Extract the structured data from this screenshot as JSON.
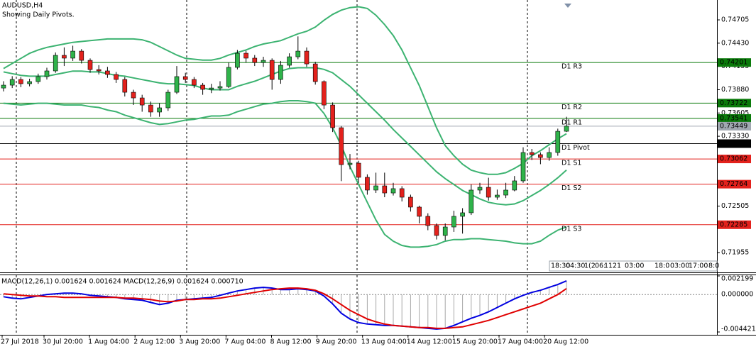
{
  "chart_data": [
    {
      "type": "candlestick",
      "title": "AUDUSD,H4",
      "subtitle": "Showing Daily Pivots.",
      "up_color": "#2fb34a",
      "down_color": "#e3211c",
      "wick_color": "#000000",
      "open": [
        0.739,
        0.73934,
        0.74001,
        0.73951,
        0.73976,
        0.74035,
        0.74102,
        0.74286,
        0.74253,
        0.74336,
        0.74227,
        0.74118,
        0.74102,
        0.7406,
        0.74001,
        0.7385,
        0.73783,
        0.73699,
        0.73616,
        0.73666,
        0.7385,
        0.74035,
        0.74001,
        0.73934,
        0.73884,
        0.739,
        0.73917,
        0.74144,
        0.74311,
        0.74253,
        0.74202,
        0.74227,
        0.74001,
        0.74169,
        0.74269,
        0.74336,
        0.74185,
        0.73976,
        0.73699,
        0.73431,
        0.72995,
        0.73012,
        0.72845,
        0.72694,
        0.72744,
        0.7266,
        0.72711,
        0.7261,
        0.72493,
        0.72384,
        0.72275,
        0.72158,
        0.72258,
        0.72384,
        0.72426,
        0.72694,
        0.72727,
        0.7261,
        0.72635,
        0.72694,
        0.72803,
        0.73138,
        0.73113,
        0.73079,
        0.73138,
        0.73389
      ],
      "high": [
        0.7398,
        0.7404,
        0.7403,
        0.7401,
        0.7407,
        0.7414,
        0.7432,
        0.7438,
        0.744,
        0.7436,
        0.7425,
        0.7417,
        0.7415,
        0.7409,
        0.7403,
        0.7388,
        0.7382,
        0.7374,
        0.7372,
        0.7388,
        0.7416,
        0.7408,
        0.7403,
        0.7396,
        0.7395,
        0.7398,
        0.742,
        0.7435,
        0.7434,
        0.7429,
        0.7427,
        0.7425,
        0.7422,
        0.7431,
        0.7451,
        0.7438,
        0.7421,
        0.7399,
        0.7373,
        0.7345,
        0.7312,
        0.7304,
        0.7288,
        0.729,
        0.729,
        0.7278,
        0.7274,
        0.7264,
        0.7251,
        0.7242,
        0.723,
        0.723,
        0.7245,
        0.7248,
        0.7276,
        0.7278,
        0.7284,
        0.727,
        0.7278,
        0.7286,
        0.732,
        0.7318,
        0.7314,
        0.732,
        0.7342,
        0.7356
      ],
      "low": [
        0.7386,
        0.739,
        0.7391,
        0.7392,
        0.7395,
        0.74,
        0.7408,
        0.7416,
        0.7422,
        0.7419,
        0.7408,
        0.7406,
        0.7402,
        0.7396,
        0.738,
        0.737,
        0.7362,
        0.7356,
        0.7356,
        0.7363,
        0.7383,
        0.7396,
        0.739,
        0.7382,
        0.7384,
        0.7387,
        0.739,
        0.7412,
        0.742,
        0.7416,
        0.7415,
        0.7388,
        0.7395,
        0.7414,
        0.7424,
        0.7415,
        0.7394,
        0.7365,
        0.7338,
        0.728,
        0.7294,
        0.7278,
        0.7264,
        0.7266,
        0.7261,
        0.7263,
        0.7256,
        0.7244,
        0.723,
        0.7222,
        0.7211,
        0.721,
        0.722,
        0.7218,
        0.724,
        0.7265,
        0.7257,
        0.7258,
        0.726,
        0.7268,
        0.7278,
        0.7305,
        0.73,
        0.7304,
        0.731,
        0.7338
      ],
      "close": [
        0.73934,
        0.74001,
        0.73951,
        0.73976,
        0.74035,
        0.74102,
        0.74286,
        0.74253,
        0.74336,
        0.74227,
        0.74118,
        0.74102,
        0.7406,
        0.74001,
        0.7385,
        0.73783,
        0.73699,
        0.73616,
        0.73666,
        0.7385,
        0.74035,
        0.74001,
        0.73934,
        0.73884,
        0.739,
        0.73917,
        0.74144,
        0.74311,
        0.74253,
        0.74202,
        0.74227,
        0.74001,
        0.74169,
        0.74269,
        0.74336,
        0.74185,
        0.73976,
        0.73699,
        0.73431,
        0.72995,
        0.73012,
        0.72845,
        0.72694,
        0.72744,
        0.7266,
        0.72711,
        0.7261,
        0.72493,
        0.72384,
        0.72275,
        0.72158,
        0.72258,
        0.72384,
        0.72426,
        0.72694,
        0.72727,
        0.7261,
        0.72635,
        0.72694,
        0.72803,
        0.73138,
        0.73113,
        0.73079,
        0.73138,
        0.73389,
        0.73449
      ],
      "bands": [
        {
          "color": "#3cb371",
          "values": [
            0.7413,
            0.7419,
            0.7425,
            0.7431,
            0.7435,
            0.7438,
            0.744,
            0.7442,
            0.7444,
            0.7445,
            0.7446,
            0.7447,
            0.7448,
            0.7448,
            0.7448,
            0.7448,
            0.7447,
            0.7444,
            0.7439,
            0.7434,
            0.7429,
            0.7425,
            0.7424,
            0.7423,
            0.7423,
            0.7425,
            0.7429,
            0.7432,
            0.7435,
            0.7439,
            0.7442,
            0.7444,
            0.7446,
            0.745,
            0.7454,
            0.7457,
            0.7462,
            0.747,
            0.7477,
            0.7482,
            0.7485,
            0.7486,
            0.7484,
            0.7476,
            0.7465,
            0.7452,
            0.7435,
            0.7414,
            0.7393,
            0.7368,
            0.7343,
            0.7322,
            0.731,
            0.73,
            0.7293,
            0.729,
            0.7288,
            0.7288,
            0.729,
            0.7295,
            0.7301,
            0.731,
            0.7316,
            0.7323,
            0.733,
            0.7336
          ]
        },
        {
          "color": "#3cb371",
          "values": [
            0.7409,
            0.7407,
            0.7405,
            0.7404,
            0.7404,
            0.7404,
            0.7406,
            0.7408,
            0.741,
            0.741,
            0.7409,
            0.7409,
            0.7407,
            0.7405,
            0.7404,
            0.7402,
            0.74,
            0.7398,
            0.7396,
            0.7395,
            0.7395,
            0.7394,
            0.7393,
            0.739,
            0.7388,
            0.7388,
            0.7388,
            0.7392,
            0.7395,
            0.7398,
            0.7402,
            0.7406,
            0.741,
            0.7413,
            0.7414,
            0.7414,
            0.7414,
            0.7412,
            0.7408,
            0.74,
            0.7392,
            0.7382,
            0.7372,
            0.7362,
            0.7352,
            0.7341,
            0.7331,
            0.7321,
            0.7311,
            0.7301,
            0.7291,
            0.7283,
            0.7276,
            0.7269,
            0.7264,
            0.7259,
            0.7255,
            0.7253,
            0.7252,
            0.7253,
            0.7257,
            0.7263,
            0.7269,
            0.7276,
            0.7284,
            0.7293
          ]
        },
        {
          "color": "#3cb371",
          "values": [
            0.7372,
            0.7371,
            0.737,
            0.7371,
            0.7372,
            0.7372,
            0.7371,
            0.737,
            0.737,
            0.737,
            0.7368,
            0.7367,
            0.7364,
            0.7362,
            0.7358,
            0.7355,
            0.7352,
            0.7349,
            0.7347,
            0.7348,
            0.735,
            0.7352,
            0.7353,
            0.7355,
            0.7357,
            0.7357,
            0.7358,
            0.7362,
            0.7365,
            0.7368,
            0.7371,
            0.7372,
            0.7374,
            0.7375,
            0.7375,
            0.7374,
            0.7372,
            0.736,
            0.7343,
            0.7322,
            0.7297,
            0.7276,
            0.7255,
            0.7234,
            0.7217,
            0.7209,
            0.7204,
            0.7202,
            0.7202,
            0.7203,
            0.7205,
            0.7209,
            0.7211,
            0.7211,
            0.7212,
            0.7212,
            0.7211,
            0.721,
            0.7209,
            0.7207,
            0.7206,
            0.7206,
            0.7209,
            0.7216,
            0.7222,
            0.7226
          ]
        }
      ],
      "levels": [
        {
          "label": "D1 R3",
          "value": 0.74201,
          "color": "#0a7a0a"
        },
        {
          "label": "D1 R2",
          "value": 0.73722,
          "color": "#0a7a0a"
        },
        {
          "label": "D1 R1",
          "value": 0.73541,
          "color": "#0a7a0a"
        },
        {
          "label": "D1 Pivot",
          "value": 0.73243,
          "color": "#000000"
        },
        {
          "label": "D1 S1",
          "value": 0.73062,
          "color": "#e3211c"
        },
        {
          "label": "D1 S2",
          "value": 0.72764,
          "color": "#e3211c"
        },
        {
          "label": "D1 S3",
          "value": 0.72285,
          "color": "#e3211c"
        }
      ],
      "bid": {
        "value": 0.73449,
        "color": "#a0a8b0"
      },
      "ylim": [
        0.7173,
        0.7494
      ],
      "yticks": [
        0.74705,
        {
          "value": 0.7443,
          "label": "0.74430"
        },
        0.74155,
        {
          "value": 0.7388,
          "label": "0.73880"
        },
        0.73605,
        {
          "value": 0.7333,
          "label": "0.73330"
        },
        0.72505,
        0.71955
      ],
      "time_labels": [
        "18:30",
        "04:30",
        "1(2",
        "06:",
        "1",
        "1",
        "21",
        "03:00",
        "18:0",
        "03:00",
        "17:00",
        "8:0"
      ]
    },
    {
      "type": "macd",
      "label": "MACD(12,26,1) 0.001624 0.001624 MACD(12,26,9) 0.001624 0.000710",
      "histogram_color": "#a8a8a8",
      "zero_line": true,
      "series": [
        {
          "color": "#0000e0",
          "values": [
            -0.000255,
            -0.000425,
            -0.000509,
            -0.00034,
            -0.00017,
            1e-05,
            8.5e-05,
            0.00017,
            0.00017,
            8.5e-05,
            -8.5e-05,
            -0.00017,
            -0.000255,
            -0.00034,
            -0.000509,
            -0.000594,
            -0.000679,
            -0.000934,
            -0.001189,
            -0.001019,
            -0.000679,
            -0.000594,
            -0.000509,
            -0.000425,
            -0.00034,
            -8.5e-05,
            0.00017,
            0.000425,
            0.000594,
            0.000764,
            0.000849,
            0.000764,
            0.000594,
            0.000594,
            0.000679,
            0.000594,
            0.000425,
            -0.00017,
            -0.001104,
            -0.002207,
            -0.002886,
            -0.003311,
            -0.003481,
            -0.003566,
            -0.003651,
            -0.003651,
            -0.003736,
            -0.003821,
            -0.003905,
            -0.00399,
            -0.004075,
            -0.00399,
            -0.003651,
            -0.003226,
            -0.002802,
            -0.002462,
            -0.002037,
            -0.001528,
            -0.001019,
            -0.000509,
            -8.5e-05,
            0.000255,
            0.000509,
            0.000849,
            0.001189,
            0.001624
          ]
        },
        {
          "color": "#e00000",
          "values": [
            8.5e-05,
            0,
            -8.5e-05,
            -0.00017,
            -0.00017,
            -0.000255,
            -0.000255,
            -0.00034,
            -0.00034,
            -0.00034,
            -0.00034,
            -0.00034,
            -0.00034,
            -0.00034,
            -0.000425,
            -0.000425,
            -0.000509,
            -0.000594,
            -0.000764,
            -0.000849,
            -0.000764,
            -0.000594,
            -0.000594,
            -0.000509,
            -0.000509,
            -0.000425,
            -0.000255,
            -8.5e-05,
            8.5e-05,
            0.000255,
            0.000425,
            0.000594,
            0.000679,
            0.000764,
            0.000764,
            0.000679,
            0.000509,
            8.5e-05,
            -0.000509,
            -0.001189,
            -0.001868,
            -0.002377,
            -0.002886,
            -0.003226,
            -0.003481,
            -0.003651,
            -0.003736,
            -0.003821,
            -0.003905,
            -0.003905,
            -0.00399,
            -0.00399,
            -0.003905,
            -0.003821,
            -0.003566,
            -0.003311,
            -0.003056,
            -0.002717,
            -0.002377,
            -0.002037,
            -0.001698,
            -0.001358,
            -0.001019,
            -0.000509,
            0,
            0.00071
          ]
        }
      ],
      "ylim": [
        -0.004421,
        0.002199
      ],
      "yticks": [
        0.002199,
        {
          "value": 0,
          "label": "0.000000"
        },
        -0.004421
      ],
      "x_labels": [
        "27 Jul 2018",
        "30 Jul 20:00",
        "1 Aug 04:00",
        "2 Aug 12:00",
        "3 Aug 20:00",
        "7 Aug 04:00",
        "8 Aug 12:00",
        "9 Aug 20:00",
        "13 Aug 04:00",
        "14 Aug 12:00",
        "15 Aug 20:00",
        "17 Aug 04:00",
        "20 Aug 12:00"
      ]
    }
  ]
}
